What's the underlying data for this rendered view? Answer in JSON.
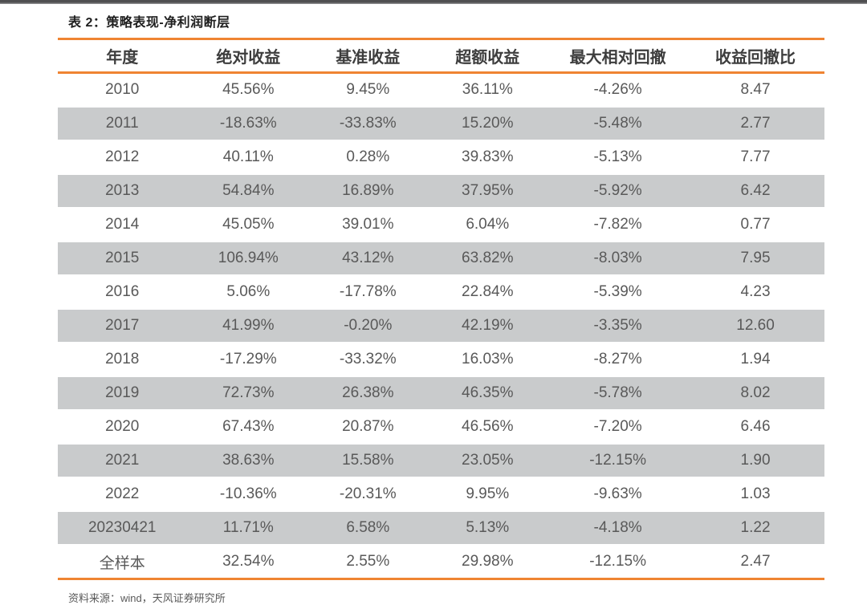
{
  "colors": {
    "accent": "#EF8432",
    "row_alt": "#C9CBCC",
    "header_text": "#3D3D3D",
    "body_text": "#595959"
  },
  "table": {
    "title": "表 2：策略表现-净利润断层",
    "columns": [
      "年度",
      "绝对收益",
      "基准收益",
      "超额收益",
      "最大相对回撤",
      "收益回撤比"
    ],
    "rows": [
      [
        "2010",
        "45.56%",
        "9.45%",
        "36.11%",
        "-4.26%",
        "8.47"
      ],
      [
        "2011",
        "-18.63%",
        "-33.83%",
        "15.20%",
        "-5.48%",
        "2.77"
      ],
      [
        "2012",
        "40.11%",
        "0.28%",
        "39.83%",
        "-5.13%",
        "7.77"
      ],
      [
        "2013",
        "54.84%",
        "16.89%",
        "37.95%",
        "-5.92%",
        "6.42"
      ],
      [
        "2014",
        "45.05%",
        "39.01%",
        "6.04%",
        "-7.82%",
        "0.77"
      ],
      [
        "2015",
        "106.94%",
        "43.12%",
        "63.82%",
        "-8.03%",
        "7.95"
      ],
      [
        "2016",
        "5.06%",
        "-17.78%",
        "22.84%",
        "-5.39%",
        "4.23"
      ],
      [
        "2017",
        "41.99%",
        "-0.20%",
        "42.19%",
        "-3.35%",
        "12.60"
      ],
      [
        "2018",
        "-17.29%",
        "-33.32%",
        "16.03%",
        "-8.27%",
        "1.94"
      ],
      [
        "2019",
        "72.73%",
        "26.38%",
        "46.35%",
        "-5.78%",
        "8.02"
      ],
      [
        "2020",
        "67.43%",
        "20.87%",
        "46.56%",
        "-7.20%",
        "6.46"
      ],
      [
        "2021",
        "38.63%",
        "15.58%",
        "23.05%",
        "-12.15%",
        "1.90"
      ],
      [
        "2022",
        "-10.36%",
        "-20.31%",
        "9.95%",
        "-9.63%",
        "1.03"
      ],
      [
        "20230421",
        "11.71%",
        "6.58%",
        "5.13%",
        "-4.18%",
        "1.22"
      ],
      [
        "全样本",
        "32.54%",
        "2.55%",
        "29.98%",
        "-12.15%",
        "2.47"
      ]
    ],
    "alt_row_indices": [
      1,
      3,
      5,
      7,
      9,
      11,
      13
    ]
  },
  "footer": {
    "source": "资料来源：wind，天风证券研究所"
  }
}
